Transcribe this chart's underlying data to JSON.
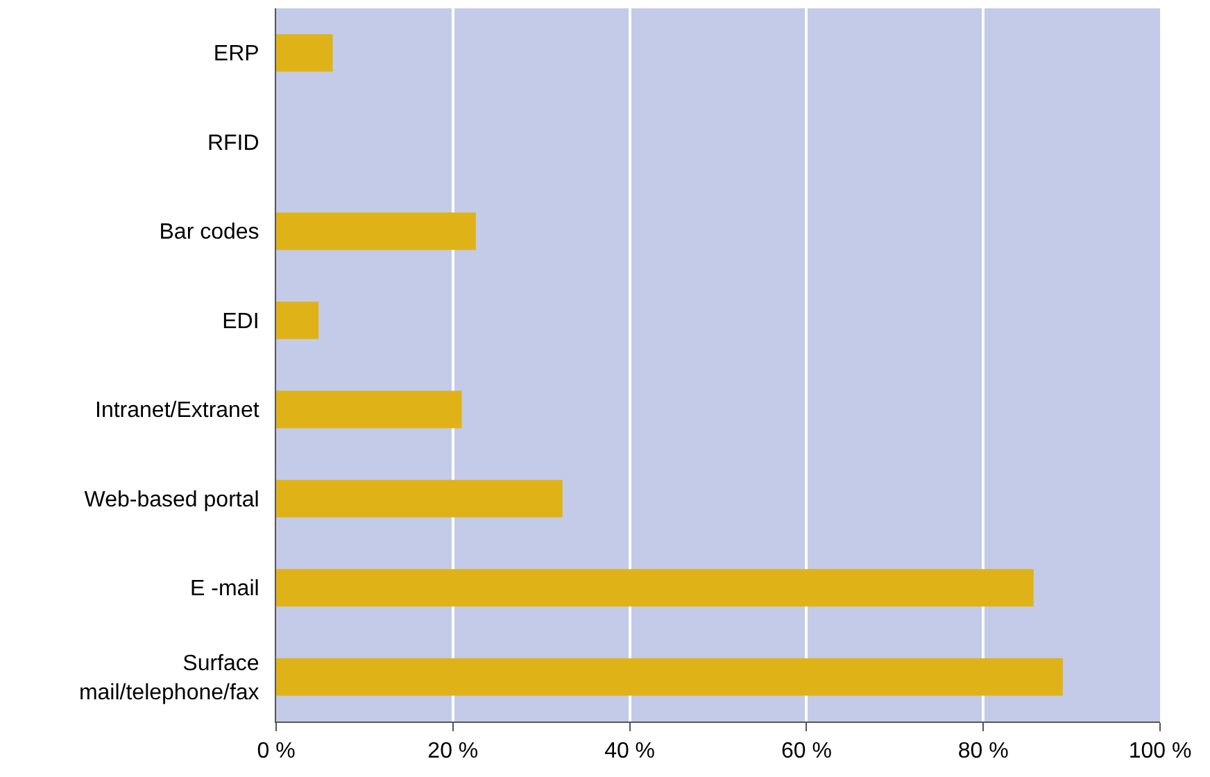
{
  "chart_data": {
    "type": "bar",
    "orientation": "horizontal",
    "categories": [
      "ERP",
      "RFID",
      "Bar codes",
      "EDI",
      "Intranet/Extranet",
      "Web-based portal",
      "E -mail",
      "Surface\nmail/telephone/fax"
    ],
    "values": [
      6.4,
      0,
      22.6,
      4.8,
      21.0,
      32.4,
      85.7,
      89.0
    ],
    "color": "#dfb318",
    "xlim": [
      0,
      100
    ],
    "xticks": [
      {
        "value": 0,
        "label": "0 %"
      },
      {
        "value": 20,
        "label": "20 %"
      },
      {
        "value": 40,
        "label": "40 %"
      },
      {
        "value": 60,
        "label": "60 %"
      },
      {
        "value": 80,
        "label": "80 %"
      },
      {
        "value": 100,
        "label": "100 %"
      }
    ],
    "grid": "x"
  }
}
